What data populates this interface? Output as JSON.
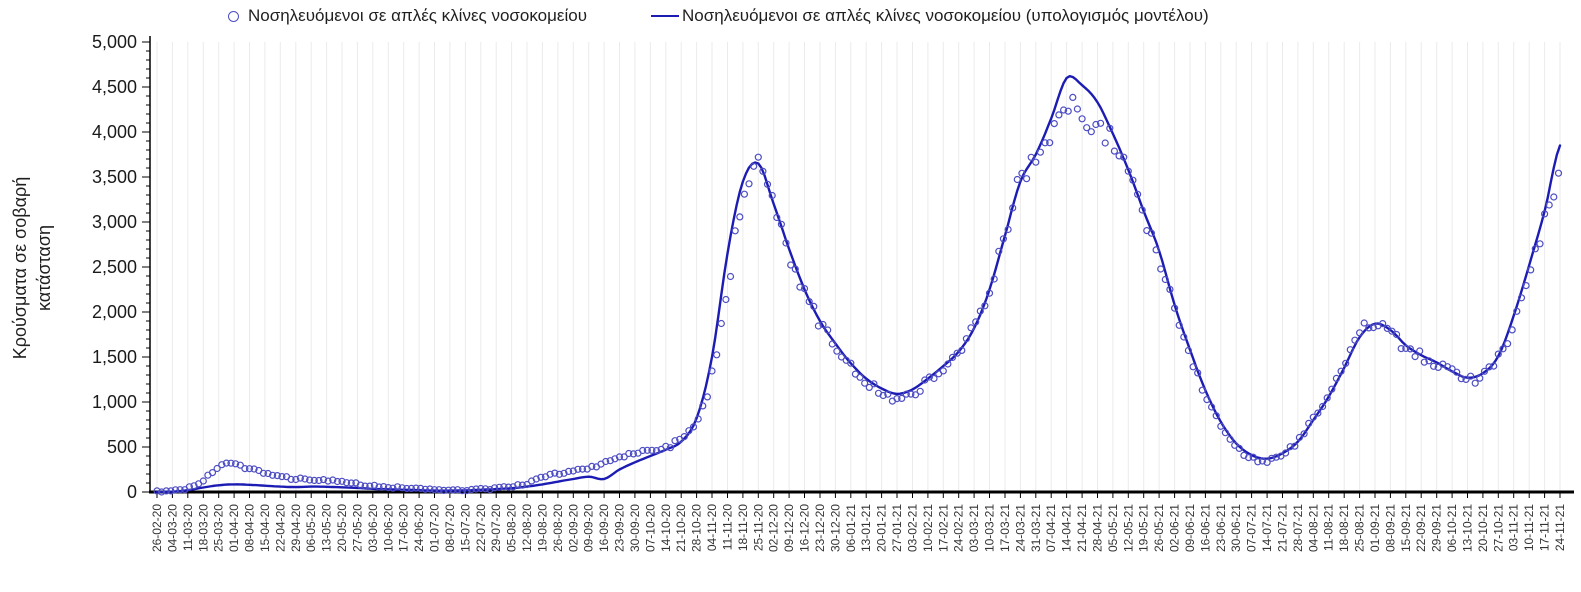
{
  "chart_data": {
    "type": "line",
    "title": "",
    "xlabel": "",
    "ylabel": "Κρούσματα σε σοβαρή κατάσταση",
    "ylim": [
      0,
      5000
    ],
    "ytick_step": 500,
    "ytick_minor_step": 100,
    "grid": "vertical-light",
    "legend_position": "top",
    "colors": {
      "line": "#1c1cb4",
      "scatter": "#4d4dc3",
      "axis": "#000000",
      "grid": "#ebebeb",
      "text": "#333333"
    },
    "categories": [
      "26-02-20",
      "04-03-20",
      "11-03-20",
      "18-03-20",
      "25-03-20",
      "01-04-20",
      "08-04-20",
      "15-04-20",
      "22-04-20",
      "29-04-20",
      "06-05-20",
      "13-05-20",
      "20-05-20",
      "27-05-20",
      "03-06-20",
      "10-06-20",
      "17-06-20",
      "24-06-20",
      "01-07-20",
      "08-07-20",
      "15-07-20",
      "22-07-20",
      "29-07-20",
      "05-08-20",
      "12-08-20",
      "19-08-20",
      "26-08-20",
      "02-09-20",
      "09-09-20",
      "16-09-20",
      "23-09-20",
      "30-09-20",
      "07-10-20",
      "14-10-20",
      "21-10-20",
      "28-10-20",
      "04-11-20",
      "11-11-20",
      "18-11-20",
      "25-11-20",
      "02-12-20",
      "09-12-20",
      "16-12-20",
      "23-12-20",
      "30-12-20",
      "06-01-21",
      "13-01-21",
      "20-01-21",
      "27-01-21",
      "03-02-21",
      "10-02-21",
      "17-02-21",
      "24-02-21",
      "03-03-21",
      "10-03-21",
      "17-03-21",
      "24-03-21",
      "31-03-21",
      "07-04-21",
      "14-04-21",
      "21-04-21",
      "28-04-21",
      "05-05-21",
      "12-05-21",
      "19-05-21",
      "26-05-21",
      "02-06-21",
      "09-06-21",
      "16-06-21",
      "23-06-21",
      "30-06-21",
      "07-07-21",
      "14-07-21",
      "21-07-21",
      "28-07-21",
      "04-08-21",
      "11-08-21",
      "18-08-21",
      "25-08-21",
      "01-09-21",
      "08-09-21",
      "15-09-21",
      "22-09-21",
      "29-09-21",
      "06-10-21",
      "13-10-21",
      "20-10-21",
      "27-10-21",
      "03-11-21",
      "10-11-21",
      "17-11-21",
      "24-11-21"
    ],
    "series": [
      {
        "name": "Νοσηλευόμενοι σε απλές κλίνες νοσοκομείου",
        "style": "scatter-open-circle",
        "values": [
          2,
          10,
          45,
          130,
          280,
          300,
          265,
          215,
          165,
          150,
          140,
          128,
          110,
          88,
          68,
          55,
          45,
          35,
          28,
          24,
          24,
          30,
          40,
          60,
          95,
          160,
          205,
          235,
          270,
          320,
          380,
          430,
          460,
          490,
          610,
          760,
          1300,
          2250,
          3300,
          3600,
          3150,
          2650,
          2200,
          1880,
          1630,
          1400,
          1240,
          1100,
          1040,
          1100,
          1240,
          1390,
          1540,
          1860,
          2280,
          2880,
          3480,
          3720,
          4000,
          4250,
          4210,
          4080,
          3880,
          3500,
          3040,
          2620,
          2030,
          1540,
          1090,
          760,
          500,
          380,
          350,
          420,
          570,
          820,
          1080,
          1400,
          1760,
          1850,
          1770,
          1600,
          1500,
          1420,
          1330,
          1250,
          1300,
          1480,
          1900,
          2450,
          3000,
          3500
        ]
      },
      {
        "name": "Νοσηλευόμενοι σε απλές κλίνες νοσοκομείου (υπολογισμός μοντέλου)",
        "style": "line",
        "values": [
          0,
          5,
          20,
          50,
          75,
          85,
          80,
          70,
          60,
          55,
          60,
          58,
          52,
          45,
          35,
          30,
          25,
          20,
          15,
          15,
          18,
          25,
          32,
          42,
          60,
          85,
          115,
          145,
          170,
          145,
          250,
          330,
          400,
          470,
          560,
          820,
          1500,
          2650,
          3450,
          3650,
          3200,
          2700,
          2250,
          1900,
          1650,
          1430,
          1260,
          1150,
          1090,
          1140,
          1260,
          1400,
          1560,
          1820,
          2250,
          2850,
          3450,
          3750,
          4150,
          4600,
          4520,
          4330,
          3980,
          3580,
          3120,
          2680,
          2080,
          1580,
          1130,
          780,
          540,
          410,
          370,
          430,
          560,
          800,
          1060,
          1380,
          1720,
          1870,
          1800,
          1630,
          1520,
          1440,
          1340,
          1270,
          1320,
          1510,
          1960,
          2520,
          3120,
          3850
        ]
      }
    ]
  }
}
